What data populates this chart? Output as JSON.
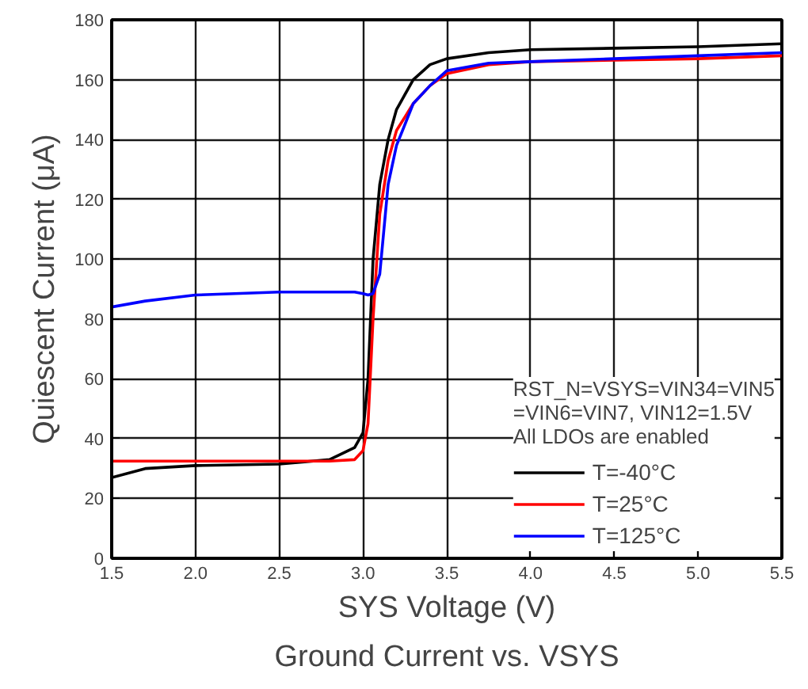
{
  "chart_data": {
    "type": "line",
    "title": "Ground Current vs. VSYS",
    "xlabel": "SYS Voltage (V)",
    "ylabel": "Quiescent Current (μA)",
    "legend_title": "RST_N=VSYS=VIN34=VIN5\n=VIN6=VIN7, VIN12=1.5V\nAll LDOs are enabled",
    "x": [
      1.5,
      1.7,
      2.0,
      2.5,
      2.8,
      2.95,
      3.0,
      3.03,
      3.06,
      3.1,
      3.15,
      3.2,
      3.3,
      3.4,
      3.5,
      3.75,
      4.0,
      4.5,
      5.0,
      5.5
    ],
    "series": [
      {
        "name": "T=-40°C",
        "color": "#000000",
        "values": [
          27,
          30,
          31,
          31.5,
          33,
          37,
          42,
          60,
          100,
          125,
          140,
          150,
          160,
          165,
          167,
          169,
          170,
          170.5,
          171,
          172
        ]
      },
      {
        "name": "T=25°C",
        "color": "#ff0000",
        "values": [
          32.5,
          32.5,
          32.5,
          32.5,
          32.5,
          33,
          36,
          45,
          80,
          115,
          133,
          143,
          152,
          158,
          162,
          165,
          166,
          166.5,
          167,
          168
        ]
      },
      {
        "name": "T=125°C",
        "color": "#0000ff",
        "values": [
          84,
          86,
          88,
          89,
          89,
          89,
          88.5,
          88,
          88.5,
          95,
          125,
          138,
          152,
          158,
          163,
          165.5,
          166,
          167,
          168,
          169
        ]
      }
    ],
    "xlim": [
      1.5,
      5.5
    ],
    "ylim": [
      0,
      180
    ],
    "xticks": [
      1.5,
      {
        "value": 2,
        "label": "2.0"
      },
      2.5,
      {
        "value": 3,
        "label": "3.0"
      },
      3.5,
      {
        "value": 4,
        "label": "4.0"
      },
      4.5,
      {
        "value": 5,
        "label": "5.0"
      },
      5.5
    ],
    "yticks": [
      0,
      20,
      40,
      60,
      80,
      100,
      120,
      140,
      160,
      180
    ],
    "grid": true,
    "legend": "bottom right",
    "marker": "none",
    "line_style": "solid"
  }
}
